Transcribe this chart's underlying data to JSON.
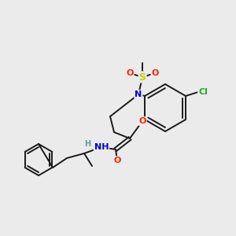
{
  "bg_color": "#ebebeb",
  "bond_color": "#1a1a1a",
  "atom_colors": {
    "N": "#0000cc",
    "O": "#ff2200",
    "S": "#cccc00",
    "Cl": "#22aa22",
    "H": "#669999",
    "C": "#1a1a1a"
  },
  "font_size": 8.0,
  "lw": 1.4
}
